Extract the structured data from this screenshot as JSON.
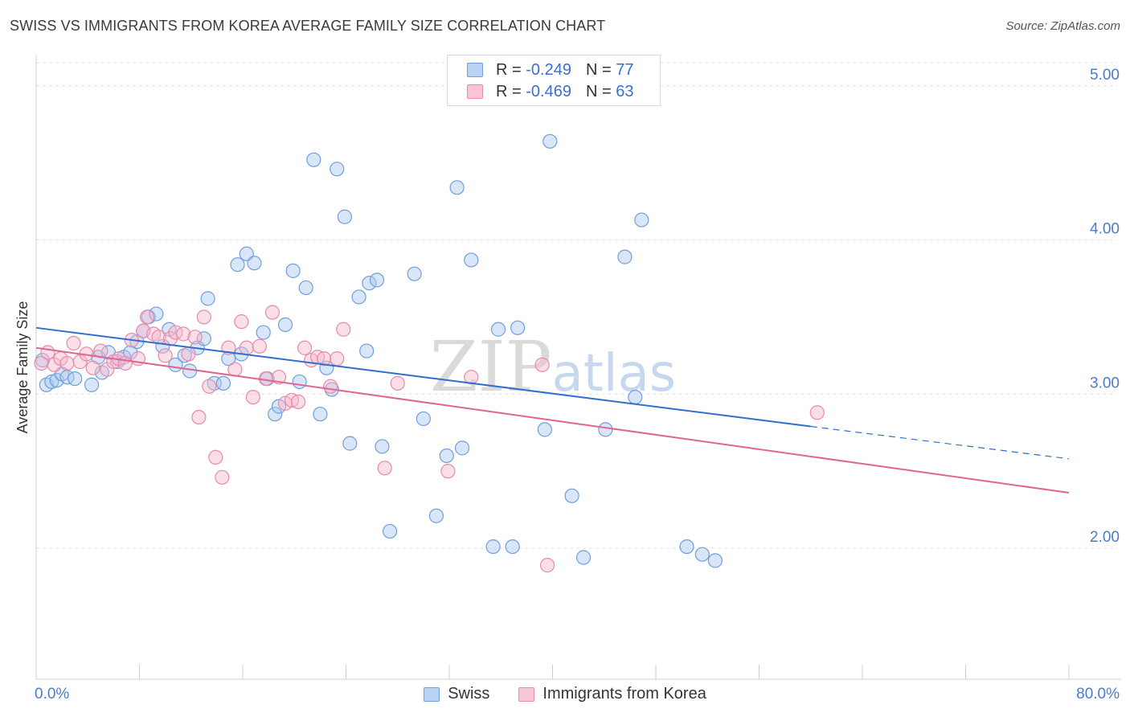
{
  "title": "SWISS VS IMMIGRANTS FROM KOREA AVERAGE FAMILY SIZE CORRELATION CHART",
  "source": "Source: ZipAtlas.com",
  "watermark": "ZIPatlas",
  "colors": {
    "swiss_fill": "#a9c8f0",
    "swiss_stroke": "#6f9fdc",
    "swiss_line": "#2f6fd0",
    "korea_fill": "#f6b8cc",
    "korea_stroke": "#e88aa9",
    "korea_line": "#e06592",
    "tick": "#4a7cc9",
    "grid": "#e2e2e2"
  },
  "legend": {
    "rows": [
      {
        "r_label": "R = ",
        "r_value": "-0.249",
        "n_label": "N = ",
        "n_value": "77"
      },
      {
        "r_label": "R = ",
        "r_value": "-0.469",
        "n_label": "N = ",
        "n_value": "63"
      }
    ]
  },
  "bottom_legend": [
    "Swiss",
    "Immigrants from Korea"
  ],
  "chart_data": {
    "type": "scatter",
    "ylabel": "Average Family Size",
    "xlim": [
      0,
      80
    ],
    "ylim": [
      1.15,
      5.15
    ],
    "y_ticks": [
      2.0,
      3.0,
      4.0,
      5.0
    ],
    "y_tick_labels": [
      "2.00",
      "3.00",
      "4.00",
      "5.00"
    ],
    "x_tick_labels": [
      "0.0%",
      "80.0%"
    ],
    "grid": true,
    "legend_position": "top-center",
    "series": [
      {
        "name": "Swiss",
        "trend": {
          "x0": 0,
          "y0": 3.43,
          "x1": 60,
          "y1": 2.79,
          "dash_to_x": 80,
          "dash_to_y": 2.58
        },
        "points": [
          [
            0.5,
            3.22
          ],
          [
            0.8,
            3.06
          ],
          [
            1.2,
            3.08
          ],
          [
            1.6,
            3.09
          ],
          [
            2.0,
            3.13
          ],
          [
            2.4,
            3.11
          ],
          [
            3.0,
            3.1
          ],
          [
            4.3,
            3.06
          ],
          [
            4.8,
            3.24
          ],
          [
            5.1,
            3.14
          ],
          [
            5.6,
            3.27
          ],
          [
            6.3,
            3.21
          ],
          [
            6.8,
            3.24
          ],
          [
            7.3,
            3.27
          ],
          [
            7.8,
            3.34
          ],
          [
            8.3,
            3.41
          ],
          [
            8.7,
            3.5
          ],
          [
            9.3,
            3.52
          ],
          [
            9.8,
            3.31
          ],
          [
            10.3,
            3.42
          ],
          [
            10.8,
            3.19
          ],
          [
            11.5,
            3.25
          ],
          [
            11.9,
            3.15
          ],
          [
            12.5,
            3.3
          ],
          [
            13.0,
            3.36
          ],
          [
            13.3,
            3.62
          ],
          [
            13.8,
            3.07
          ],
          [
            14.5,
            3.07
          ],
          [
            14.9,
            3.23
          ],
          [
            15.6,
            3.84
          ],
          [
            15.9,
            3.26
          ],
          [
            16.3,
            3.91
          ],
          [
            16.9,
            3.85
          ],
          [
            17.6,
            3.4
          ],
          [
            17.9,
            3.1
          ],
          [
            18.5,
            2.87
          ],
          [
            18.8,
            2.92
          ],
          [
            19.3,
            3.45
          ],
          [
            19.9,
            3.8
          ],
          [
            20.4,
            3.08
          ],
          [
            20.9,
            3.69
          ],
          [
            21.5,
            4.52
          ],
          [
            22.0,
            2.87
          ],
          [
            22.5,
            3.17
          ],
          [
            22.9,
            3.03
          ],
          [
            23.3,
            4.46
          ],
          [
            23.9,
            4.15
          ],
          [
            24.3,
            2.68
          ],
          [
            25.0,
            3.63
          ],
          [
            25.6,
            3.28
          ],
          [
            25.8,
            3.72
          ],
          [
            26.4,
            3.74
          ],
          [
            26.8,
            2.66
          ],
          [
            27.4,
            2.11
          ],
          [
            29.3,
            3.78
          ],
          [
            30.0,
            2.84
          ],
          [
            31.0,
            2.21
          ],
          [
            31.8,
            2.6
          ],
          [
            32.6,
            4.34
          ],
          [
            33.0,
            2.65
          ],
          [
            33.7,
            3.87
          ],
          [
            35.4,
            2.01
          ],
          [
            35.8,
            3.42
          ],
          [
            36.9,
            2.01
          ],
          [
            37.3,
            3.43
          ],
          [
            39.4,
            2.77
          ],
          [
            39.8,
            4.64
          ],
          [
            41.5,
            2.34
          ],
          [
            42.4,
            1.94
          ],
          [
            44.1,
            2.77
          ],
          [
            45.6,
            3.89
          ],
          [
            46.4,
            2.98
          ],
          [
            46.9,
            4.13
          ],
          [
            50.4,
            2.01
          ],
          [
            51.6,
            1.96
          ],
          [
            52.6,
            1.92
          ]
        ]
      },
      {
        "name": "Immigrants from Korea",
        "trend": {
          "x0": 0,
          "y0": 3.3,
          "x1": 80,
          "y1": 2.36
        },
        "points": [
          [
            0.4,
            3.2
          ],
          [
            0.9,
            3.27
          ],
          [
            1.4,
            3.19
          ],
          [
            1.9,
            3.23
          ],
          [
            2.4,
            3.2
          ],
          [
            2.9,
            3.33
          ],
          [
            3.4,
            3.21
          ],
          [
            3.9,
            3.26
          ],
          [
            4.4,
            3.17
          ],
          [
            5.0,
            3.28
          ],
          [
            5.5,
            3.16
          ],
          [
            6.0,
            3.21
          ],
          [
            6.4,
            3.23
          ],
          [
            6.9,
            3.2
          ],
          [
            7.4,
            3.35
          ],
          [
            7.9,
            3.23
          ],
          [
            8.3,
            3.41
          ],
          [
            8.6,
            3.5
          ],
          [
            9.1,
            3.39
          ],
          [
            9.5,
            3.37
          ],
          [
            10.0,
            3.25
          ],
          [
            10.4,
            3.36
          ],
          [
            10.8,
            3.4
          ],
          [
            11.4,
            3.39
          ],
          [
            11.8,
            3.26
          ],
          [
            12.3,
            3.37
          ],
          [
            12.6,
            2.85
          ],
          [
            13.0,
            3.5
          ],
          [
            13.4,
            3.05
          ],
          [
            13.9,
            2.59
          ],
          [
            14.4,
            2.46
          ],
          [
            14.9,
            3.3
          ],
          [
            15.4,
            3.16
          ],
          [
            15.9,
            3.47
          ],
          [
            16.3,
            3.3
          ],
          [
            16.8,
            2.98
          ],
          [
            17.3,
            3.31
          ],
          [
            17.8,
            3.1
          ],
          [
            18.3,
            3.53
          ],
          [
            18.8,
            3.11
          ],
          [
            19.3,
            2.94
          ],
          [
            19.8,
            2.96
          ],
          [
            20.3,
            2.95
          ],
          [
            20.8,
            3.3
          ],
          [
            21.3,
            3.22
          ],
          [
            21.8,
            3.24
          ],
          [
            22.3,
            3.23
          ],
          [
            22.8,
            3.05
          ],
          [
            23.3,
            3.23
          ],
          [
            23.8,
            3.42
          ],
          [
            27.0,
            2.52
          ],
          [
            28.0,
            3.07
          ],
          [
            31.9,
            2.5
          ],
          [
            33.7,
            3.11
          ],
          [
            39.2,
            3.19
          ],
          [
            39.6,
            1.89
          ],
          [
            60.5,
            2.88
          ]
        ]
      }
    ]
  }
}
